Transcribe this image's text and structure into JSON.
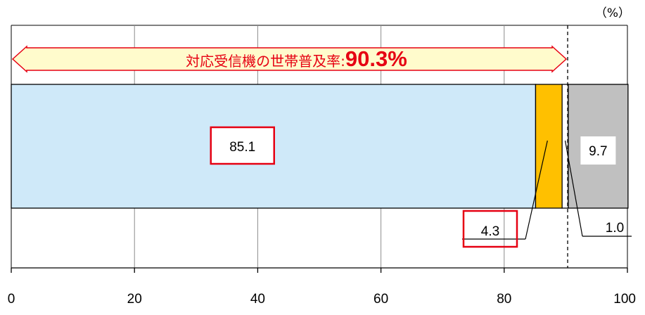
{
  "chart_data": {
    "type": "bar",
    "orientation": "horizontal-stacked-100",
    "unit_label": "（%）",
    "xlim": [
      0,
      100
    ],
    "x_ticks": [
      0,
      20,
      40,
      60,
      80,
      100
    ],
    "grid": true,
    "series": [
      {
        "value": 85.1,
        "color": "#cfe9f9",
        "label": "85.1",
        "highlighted": true
      },
      {
        "value": 4.3,
        "color": "#ffc000",
        "label": "4.3",
        "highlighted": true
      },
      {
        "value": 1.0,
        "color": "#ffffff",
        "label": "1.0",
        "highlighted": false
      },
      {
        "value": 9.7,
        "color": "#c0c0c0",
        "label": "9.7",
        "highlighted": false
      }
    ],
    "reference_line": {
      "value": 90.3,
      "style": "dashed"
    },
    "banner": {
      "text": "対応受信機の世帯普及率:",
      "value": "90.3%",
      "from": 0,
      "to": 90.3,
      "fill": "#fffbcc",
      "stroke": "#e60012"
    },
    "highlight_color": "#e60012"
  }
}
